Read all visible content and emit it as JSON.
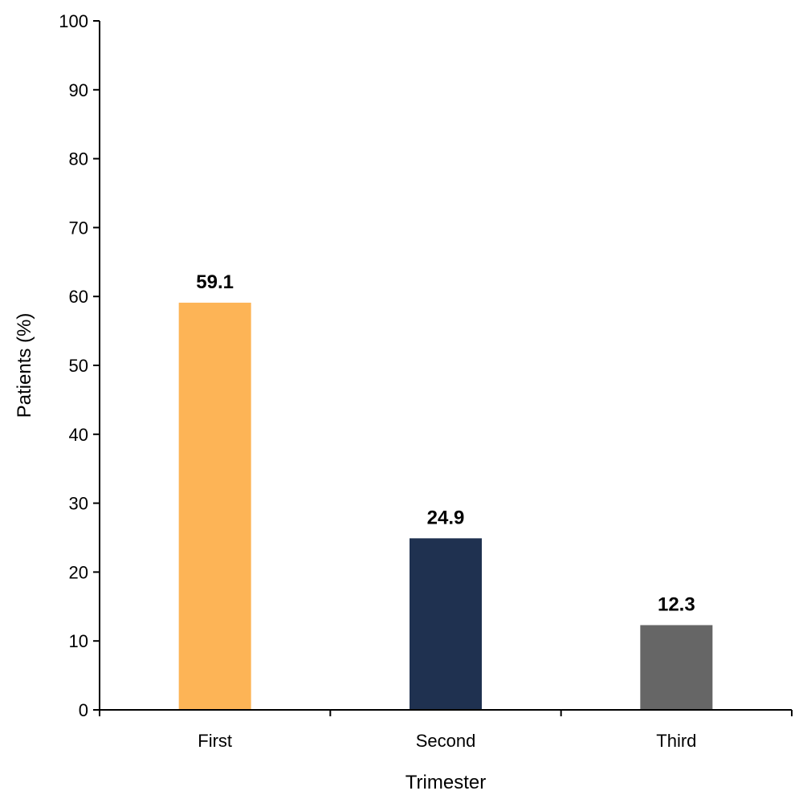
{
  "chart_data": {
    "type": "bar",
    "categories": [
      "First",
      "Second",
      "Third"
    ],
    "values": [
      59.1,
      24.9,
      12.3
    ],
    "data_labels": [
      "59.1",
      "24.9",
      "12.3"
    ],
    "colors": [
      "#FDB456",
      "#1F3150",
      "#666666"
    ],
    "title": "",
    "xlabel": "Trimester",
    "ylabel": "Patients (%)",
    "ylim": [
      0,
      100
    ],
    "yticks": [
      0,
      10,
      20,
      30,
      40,
      50,
      60,
      70,
      80,
      90,
      100
    ],
    "grid": false,
    "legend": "none"
  }
}
